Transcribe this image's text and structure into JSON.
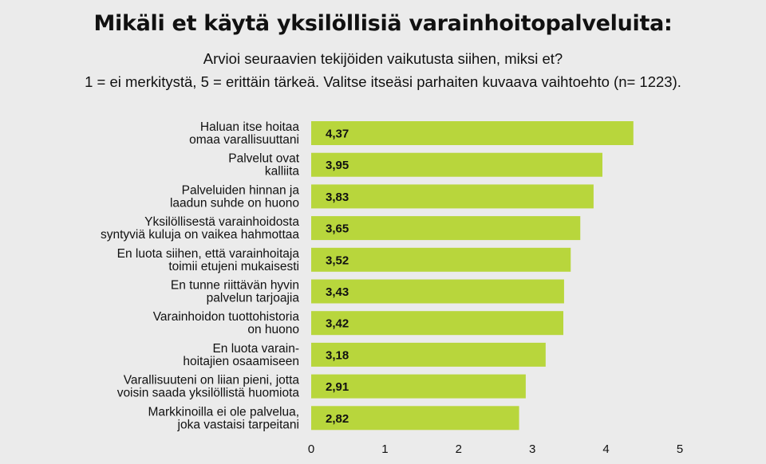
{
  "header": {
    "title": "Mikäli et käytä yksilöllisiä varainhoitopalveluita:",
    "subtitle_line1": "Arvioi seuraavien tekijöiden vaikutusta siihen, miksi et?",
    "subtitle_line2": "1 = ei merkitystä, 5 = erittäin tärkeä. Valitse itseäsi parhaiten kuvaava vaihtoehto (n= 1223)."
  },
  "chart_data": {
    "type": "bar",
    "orientation": "horizontal",
    "title": "Mikäli et käytä yksilöllisiä varainhoitopalveluita:",
    "subtitle": "Arvioi seuraavien tekijöiden vaikutusta siihen, miksi et? 1 = ei merkitystä, 5 = erittäin tärkeä. Valitse itseäsi parhaiten kuvaava vaihtoehto (n= 1223).",
    "categories": [
      [
        "Haluan itse hoitaa",
        "omaa varallisuuttani"
      ],
      [
        "Palvelut ovat",
        "kalliita"
      ],
      [
        "Palveluiden hinnan ja",
        "laadun suhde on huono"
      ],
      [
        "Yksilöllisestä varainhoidosta",
        "syntyviä kuluja on vaikea hahmottaa"
      ],
      [
        "En luota siihen, että varainhoitaja",
        "toimii etujeni mukaisesti"
      ],
      [
        "En tunne riittävän hyvin",
        "palvelun tarjoajia"
      ],
      [
        "Varainhoidon tuottohistoria",
        "on huono"
      ],
      [
        "En luota varain-",
        "hoitajien osaamiseen"
      ],
      [
        "Varallisuuteni on liian pieni, jotta",
        "voisin saada yksilöllistä huomiota"
      ],
      [
        "Markkinoilla ei ole palvelua,",
        "joka vastaisi tarpeitani"
      ]
    ],
    "values": [
      4.37,
      3.95,
      3.83,
      3.65,
      3.52,
      3.43,
      3.42,
      3.18,
      2.91,
      2.82
    ],
    "value_labels": [
      "4,37",
      "3,95",
      "3,83",
      "3,65",
      "3,52",
      "3,43",
      "3,42",
      "3,18",
      "2,91",
      "2,82"
    ],
    "xlim": [
      0,
      5
    ],
    "xticks": [
      0,
      1,
      2,
      3,
      4,
      5
    ],
    "xlabel": "",
    "ylabel": "",
    "grid": false,
    "legend": "none",
    "bar_color": "#b8d63c",
    "background_color": "#ebebeb"
  }
}
